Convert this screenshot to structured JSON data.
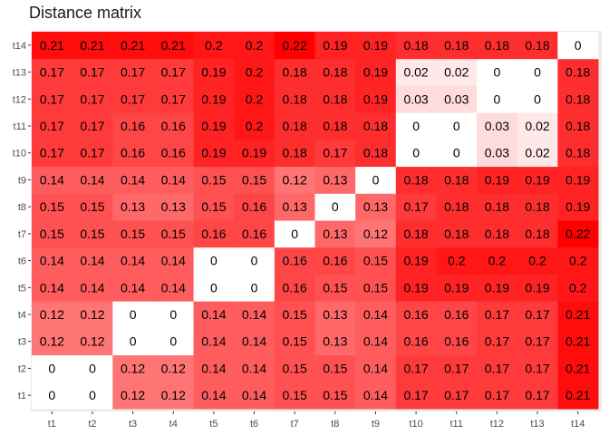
{
  "chart_data": {
    "type": "heatmap",
    "title": "Distance matrix",
    "xlabel": "",
    "ylabel": "",
    "x_categories": [
      "t1",
      "t2",
      "t3",
      "t4",
      "t5",
      "t6",
      "t7",
      "t8",
      "t9",
      "t10",
      "t11",
      "t12",
      "t13",
      "t14"
    ],
    "y_categories": [
      "t1",
      "t2",
      "t3",
      "t4",
      "t5",
      "t6",
      "t7",
      "t8",
      "t9",
      "t10",
      "t11",
      "t12",
      "t13",
      "t14"
    ],
    "values": [
      [
        "0",
        "0",
        "0.12",
        "0.12",
        "0.14",
        "0.14",
        "0.15",
        "0.15",
        "0.14",
        "0.17",
        "0.17",
        "0.17",
        "0.17",
        "0.21"
      ],
      [
        "0",
        "0",
        "0.12",
        "0.12",
        "0.14",
        "0.14",
        "0.15",
        "0.15",
        "0.14",
        "0.17",
        "0.17",
        "0.17",
        "0.17",
        "0.21"
      ],
      [
        "0.12",
        "0.12",
        "0",
        "0",
        "0.14",
        "0.14",
        "0.15",
        "0.13",
        "0.14",
        "0.16",
        "0.16",
        "0.17",
        "0.17",
        "0.21"
      ],
      [
        "0.12",
        "0.12",
        "0",
        "0",
        "0.14",
        "0.14",
        "0.15",
        "0.13",
        "0.14",
        "0.16",
        "0.16",
        "0.17",
        "0.17",
        "0.21"
      ],
      [
        "0.14",
        "0.14",
        "0.14",
        "0.14",
        "0",
        "0",
        "0.16",
        "0.15",
        "0.15",
        "0.19",
        "0.19",
        "0.19",
        "0.19",
        "0.2"
      ],
      [
        "0.14",
        "0.14",
        "0.14",
        "0.14",
        "0",
        "0",
        "0.16",
        "0.16",
        "0.15",
        "0.19",
        "0.2",
        "0.2",
        "0.2",
        "0.2"
      ],
      [
        "0.15",
        "0.15",
        "0.15",
        "0.15",
        "0.16",
        "0.16",
        "0",
        "0.13",
        "0.12",
        "0.18",
        "0.18",
        "0.18",
        "0.18",
        "0.22"
      ],
      [
        "0.15",
        "0.15",
        "0.13",
        "0.13",
        "0.15",
        "0.16",
        "0.13",
        "0",
        "0.13",
        "0.17",
        "0.18",
        "0.18",
        "0.18",
        "0.19"
      ],
      [
        "0.14",
        "0.14",
        "0.14",
        "0.14",
        "0.15",
        "0.15",
        "0.12",
        "0.13",
        "0",
        "0.18",
        "0.18",
        "0.19",
        "0.19",
        "0.19"
      ],
      [
        "0.17",
        "0.17",
        "0.16",
        "0.16",
        "0.19",
        "0.19",
        "0.18",
        "0.17",
        "0.18",
        "0",
        "0",
        "0.03",
        "0.02",
        "0.18"
      ],
      [
        "0.17",
        "0.17",
        "0.16",
        "0.16",
        "0.19",
        "0.2",
        "0.18",
        "0.18",
        "0.18",
        "0",
        "0",
        "0.03",
        "0.02",
        "0.18"
      ],
      [
        "0.17",
        "0.17",
        "0.17",
        "0.17",
        "0.19",
        "0.2",
        "0.18",
        "0.18",
        "0.19",
        "0.03",
        "0.03",
        "0",
        "0",
        "0.18"
      ],
      [
        "0.17",
        "0.17",
        "0.17",
        "0.17",
        "0.19",
        "0.2",
        "0.18",
        "0.18",
        "0.19",
        "0.02",
        "0.02",
        "0",
        "0",
        "0.18"
      ],
      [
        "0.21",
        "0.21",
        "0.21",
        "0.21",
        "0.2",
        "0.2",
        "0.22",
        "0.19",
        "0.19",
        "0.18",
        "0.18",
        "0.18",
        "0.18",
        "0"
      ]
    ],
    "color_scale": {
      "low": "#ffffff",
      "high": "#ff0000",
      "min": 0,
      "max": 0.22
    },
    "grid": false,
    "legend": "none"
  }
}
